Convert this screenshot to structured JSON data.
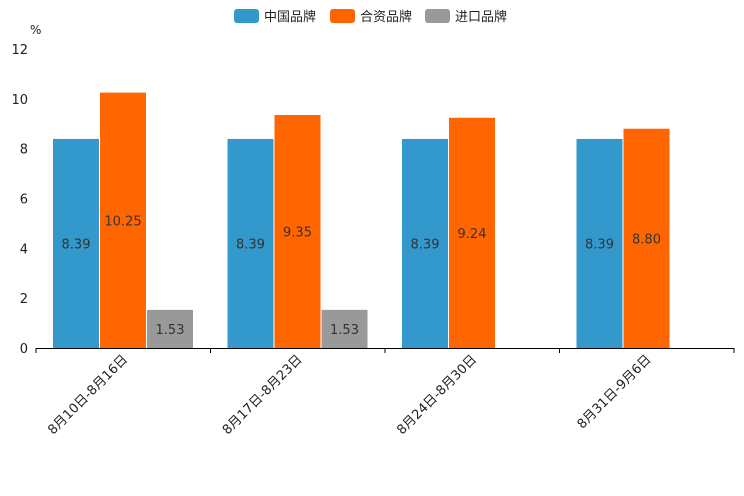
{
  "chart_data": {
    "type": "bar",
    "unit": "%",
    "categories": [
      "8月10日-8月16日",
      "8月17日-8月23日",
      "8月24日-8月30日",
      "8月31日-9月6日"
    ],
    "series": [
      {
        "name": "中国品牌",
        "color": "#3399cc",
        "values": [
          8.39,
          8.39,
          8.39,
          8.39
        ],
        "labels": [
          "8.39",
          "8.39",
          "8.39",
          "8.39"
        ]
      },
      {
        "name": "合资品牌",
        "color": "#ff6600",
        "values": [
          10.25,
          9.35,
          9.24,
          8.8
        ],
        "labels": [
          "10.25",
          "9.35",
          "9.24",
          "8.80"
        ]
      },
      {
        "name": "进口品牌",
        "color": "#999999",
        "values": [
          1.53,
          1.53,
          null,
          null
        ],
        "labels": [
          "1.53",
          "1.53",
          null,
          null
        ]
      }
    ],
    "y_ticks": [
      "0",
      "2",
      "4",
      "6",
      "8",
      "10",
      "12"
    ],
    "ylim": [
      0,
      12
    ],
    "legend_position": "top-center",
    "grid": false
  }
}
